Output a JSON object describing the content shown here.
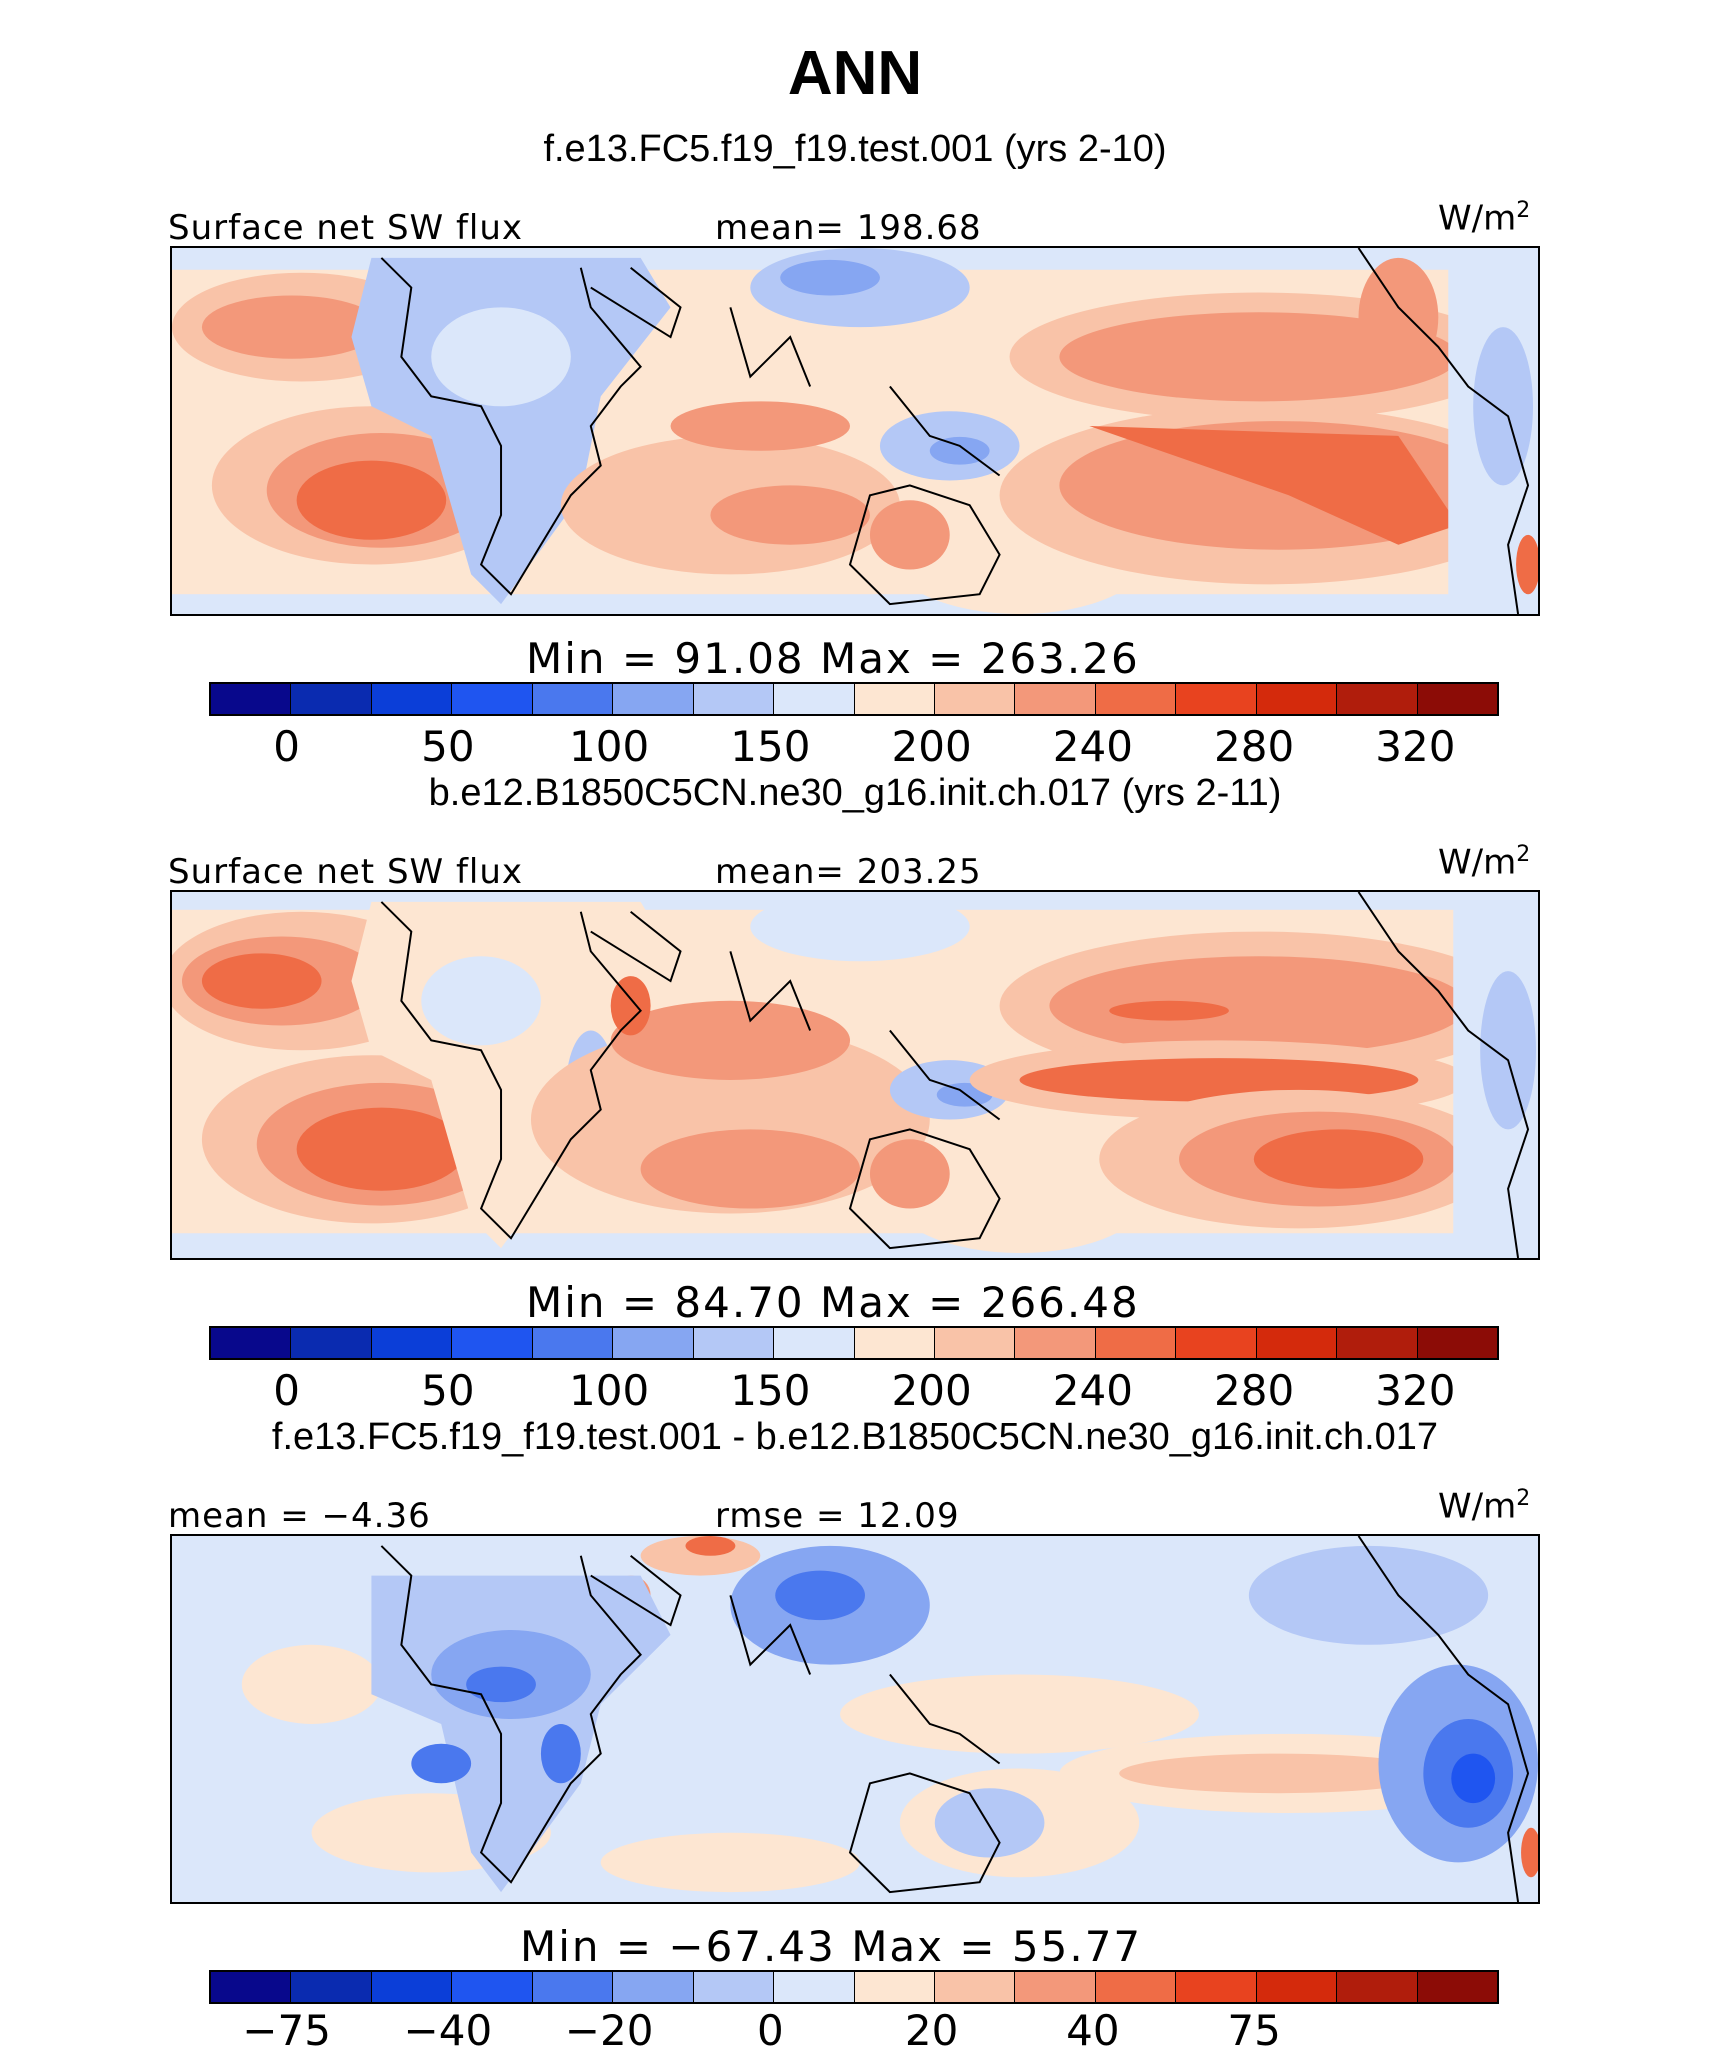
{
  "title": "ANN",
  "panels": [
    {
      "case_title": "f.e13.FC5.f19_f19.test.001 (yrs 2-10)",
      "left_label": "Surface net SW flux",
      "center_label": "mean=  198.68",
      "units_base": "W/m",
      "units_exp": "2",
      "min_max": "Min =   91.08  Max =  263.26",
      "colorbar_ticks": [
        "0",
        "50",
        "100",
        "150",
        "200",
        "240",
        "280",
        "320"
      ],
      "colormap": [
        "#08088c",
        "#0a2bb0",
        "#0b3ed8",
        "#1f55f0",
        "#4a78ee",
        "#86a6f2",
        "#b4c8f6",
        "#dbe7fa",
        "#fde6d2",
        "#f9c3a8",
        "#f3987a",
        "#ef6c46",
        "#e8431f",
        "#d42a0c",
        "#b01d0c",
        "#8c0c06"
      ]
    },
    {
      "case_title": "b.e12.B1850C5CN.ne30_g16.init.ch.017 (yrs 2-11)",
      "left_label": "Surface net SW flux",
      "center_label": "mean=  203.25",
      "units_base": "W/m",
      "units_exp": "2",
      "min_max": "Min =   84.70  Max =  266.48",
      "colorbar_ticks": [
        "0",
        "50",
        "100",
        "150",
        "200",
        "240",
        "280",
        "320"
      ],
      "colormap": [
        "#08088c",
        "#0a2bb0",
        "#0b3ed8",
        "#1f55f0",
        "#4a78ee",
        "#86a6f2",
        "#b4c8f6",
        "#dbe7fa",
        "#fde6d2",
        "#f9c3a8",
        "#f3987a",
        "#ef6c46",
        "#e8431f",
        "#d42a0c",
        "#b01d0c",
        "#8c0c06"
      ]
    },
    {
      "case_title": "f.e13.FC5.f19_f19.test.001 - b.e12.B1850C5CN.ne30_g16.init.ch.017",
      "left_label": "mean =  −4.36",
      "center_label": "rmse =   12.09",
      "units_base": "W/m",
      "units_exp": "2",
      "min_max": "Min = −67.43  Max =   55.77",
      "colorbar_ticks": [
        "−75",
        "−40",
        "−20",
        "0",
        "20",
        "40",
        "75"
      ],
      "colormap": [
        "#08088c",
        "#0a2bb0",
        "#0b3ed8",
        "#1f55f0",
        "#4a78ee",
        "#86a6f2",
        "#b4c8f6",
        "#dbe7fa",
        "#fde6d2",
        "#f9c3a8",
        "#f3987a",
        "#ef6c46",
        "#e8431f",
        "#d42a0c",
        "#b01d0c",
        "#8c0c06"
      ]
    }
  ]
}
